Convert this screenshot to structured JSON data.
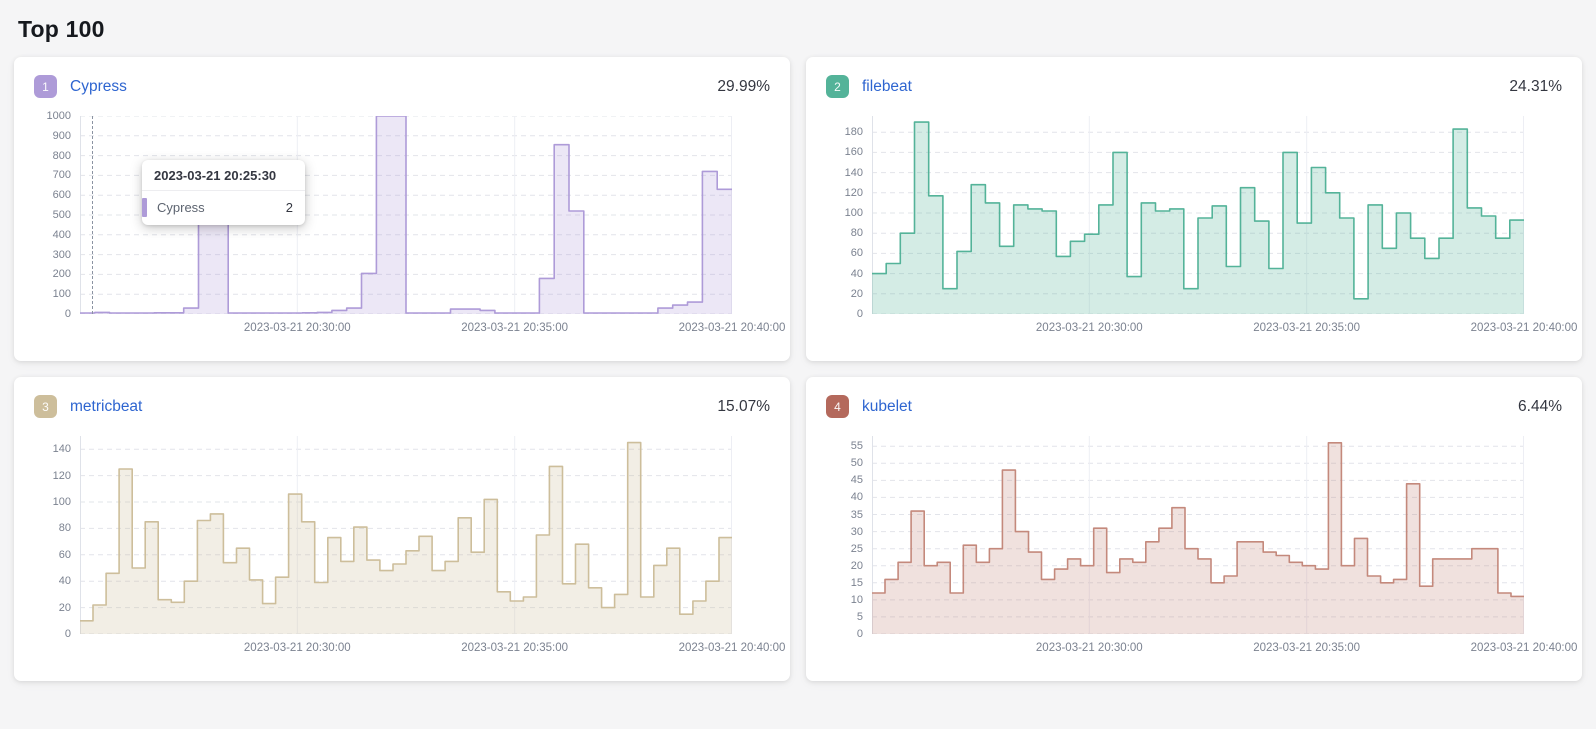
{
  "title": "Top 100",
  "tooltip": {
    "timestamp": "2023-03-21 20:25:30",
    "series": "Cypress",
    "value": "2"
  },
  "panels": [
    {
      "rank": "1",
      "title": "Cypress",
      "percentage": "29.99%"
    },
    {
      "rank": "2",
      "title": "filebeat",
      "percentage": "24.31%"
    },
    {
      "rank": "3",
      "title": "metricbeat",
      "percentage": "15.07%"
    },
    {
      "rank": "4",
      "title": "kubelet",
      "percentage": "6.44%"
    }
  ],
  "chart_data": [
    {
      "type": "area",
      "step": true,
      "series": [
        {
          "name": "Cypress",
          "values": [
            5,
            8,
            5,
            5,
            5,
            6,
            6,
            30,
            480,
            480,
            5,
            5,
            5,
            5,
            5,
            6,
            8,
            18,
            30,
            205,
            1000,
            1000,
            5,
            5,
            5,
            25,
            25,
            18,
            5,
            5,
            5,
            180,
            855,
            520,
            5,
            5,
            5,
            5,
            5,
            30,
            45,
            60,
            720,
            630
          ]
        }
      ],
      "yticks": [
        0,
        100,
        200,
        300,
        400,
        500,
        600,
        700,
        800,
        900,
        1000
      ],
      "scale_max": 1000,
      "ylim": [
        0,
        1000
      ],
      "x_labels": [
        "2023-03-21 20:30:00",
        "2023-03-21 20:35:00",
        "2023-03-21 20:40:00"
      ],
      "grid": "dashed-horizontal",
      "color": "#AE9BD8",
      "badge_color": "#AE9BD8",
      "fill": "rgba(174,155,216,0.24)",
      "crosshair": true,
      "tooltip": true
    },
    {
      "type": "area",
      "step": true,
      "series": [
        {
          "name": "filebeat",
          "values": [
            40,
            50,
            80,
            190,
            117,
            25,
            62,
            128,
            110,
            67,
            108,
            104,
            102,
            57,
            72,
            79,
            108,
            160,
            37,
            110,
            102,
            104,
            25,
            95,
            107,
            47,
            125,
            92,
            45,
            160,
            90,
            145,
            120,
            95,
            15,
            108,
            65,
            100,
            75,
            55,
            75,
            183,
            105,
            97,
            75,
            93
          ]
        }
      ],
      "yticks": [
        0,
        20,
        40,
        60,
        80,
        100,
        120,
        140,
        160,
        180
      ],
      "scale_max": 196,
      "ylim": [
        0,
        180
      ],
      "x_labels": [
        "2023-03-21 20:30:00",
        "2023-03-21 20:35:00",
        "2023-03-21 20:40:00"
      ],
      "grid": "dashed-horizontal",
      "color": "#54B399",
      "badge_color": "#54B399",
      "fill": "rgba(84,179,153,0.25)",
      "crosshair": false,
      "tooltip": false
    },
    {
      "type": "area",
      "step": true,
      "series": [
        {
          "name": "metricbeat",
          "values": [
            10,
            22,
            46,
            125,
            50,
            85,
            26,
            24,
            40,
            86,
            91,
            54,
            65,
            41,
            23,
            43,
            106,
            85,
            39,
            73,
            55,
            81,
            56,
            48,
            53,
            63,
            74,
            48,
            55,
            88,
            62,
            102,
            32,
            25,
            28,
            75,
            127,
            38,
            68,
            35,
            20,
            30,
            145,
            28,
            52,
            65,
            15,
            25,
            40,
            73
          ]
        }
      ],
      "yticks": [
        0,
        20,
        40,
        60,
        80,
        100,
        120,
        140
      ],
      "scale_max": 150,
      "ylim": [
        0,
        140
      ],
      "x_labels": [
        "2023-03-21 20:30:00",
        "2023-03-21 20:35:00",
        "2023-03-21 20:40:00"
      ],
      "grid": "dashed-horizontal",
      "color": "#CDBE9B",
      "badge_color": "#CDBE9B",
      "fill": "rgba(205,190,155,0.26)",
      "crosshair": false,
      "tooltip": false
    },
    {
      "type": "area",
      "step": true,
      "series": [
        {
          "name": "kubelet",
          "values": [
            12,
            16,
            21,
            36,
            20,
            21,
            12,
            26,
            21,
            25,
            48,
            30,
            24,
            16,
            19,
            22,
            20,
            31,
            18,
            22,
            21,
            27,
            31,
            37,
            25,
            22,
            15,
            17,
            27,
            27,
            24,
            23,
            21,
            20,
            19,
            56,
            20,
            28,
            17,
            15,
            16,
            44,
            14,
            22,
            22,
            22,
            25,
            25,
            12,
            11
          ]
        }
      ],
      "yticks": [
        0,
        5,
        10,
        15,
        20,
        25,
        30,
        35,
        40,
        45,
        50,
        55
      ],
      "scale_max": 58,
      "ylim": [
        0,
        55
      ],
      "x_labels": [
        "2023-03-21 20:30:00",
        "2023-03-21 20:35:00",
        "2023-03-21 20:40:00"
      ],
      "grid": "dashed-horizontal",
      "color": "#C4897C",
      "badge_color": "#B4695C",
      "fill": "rgba(196,137,124,0.25)",
      "crosshair": false,
      "tooltip": false
    }
  ]
}
